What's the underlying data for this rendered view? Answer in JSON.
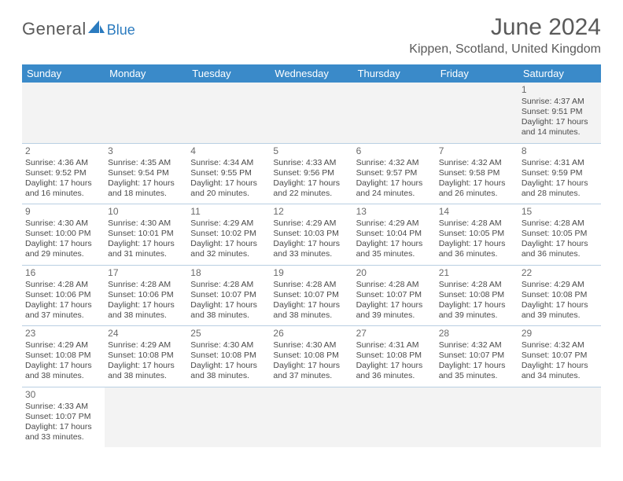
{
  "logo": {
    "text1": "General",
    "text2": "Blue",
    "shape_color": "#2b7bbf"
  },
  "title": "June 2024",
  "location": "Kippen, Scotland, United Kingdom",
  "colors": {
    "header_bg": "#3a8ac9",
    "header_text": "#ffffff",
    "cell_border": "#b9cfe2",
    "body_text": "#4a4a4a",
    "title_text": "#5a5a5a",
    "blank_bg": "#f3f3f3",
    "page_bg": "#ffffff"
  },
  "day_names": [
    "Sunday",
    "Monday",
    "Tuesday",
    "Wednesday",
    "Thursday",
    "Friday",
    "Saturday"
  ],
  "weeks": [
    [
      null,
      null,
      null,
      null,
      null,
      null,
      {
        "n": "1",
        "sr": "Sunrise: 4:37 AM",
        "ss": "Sunset: 9:51 PM",
        "d1": "Daylight: 17 hours",
        "d2": "and 14 minutes."
      }
    ],
    [
      {
        "n": "2",
        "sr": "Sunrise: 4:36 AM",
        "ss": "Sunset: 9:52 PM",
        "d1": "Daylight: 17 hours",
        "d2": "and 16 minutes."
      },
      {
        "n": "3",
        "sr": "Sunrise: 4:35 AM",
        "ss": "Sunset: 9:54 PM",
        "d1": "Daylight: 17 hours",
        "d2": "and 18 minutes."
      },
      {
        "n": "4",
        "sr": "Sunrise: 4:34 AM",
        "ss": "Sunset: 9:55 PM",
        "d1": "Daylight: 17 hours",
        "d2": "and 20 minutes."
      },
      {
        "n": "5",
        "sr": "Sunrise: 4:33 AM",
        "ss": "Sunset: 9:56 PM",
        "d1": "Daylight: 17 hours",
        "d2": "and 22 minutes."
      },
      {
        "n": "6",
        "sr": "Sunrise: 4:32 AM",
        "ss": "Sunset: 9:57 PM",
        "d1": "Daylight: 17 hours",
        "d2": "and 24 minutes."
      },
      {
        "n": "7",
        "sr": "Sunrise: 4:32 AM",
        "ss": "Sunset: 9:58 PM",
        "d1": "Daylight: 17 hours",
        "d2": "and 26 minutes."
      },
      {
        "n": "8",
        "sr": "Sunrise: 4:31 AM",
        "ss": "Sunset: 9:59 PM",
        "d1": "Daylight: 17 hours",
        "d2": "and 28 minutes."
      }
    ],
    [
      {
        "n": "9",
        "sr": "Sunrise: 4:30 AM",
        "ss": "Sunset: 10:00 PM",
        "d1": "Daylight: 17 hours",
        "d2": "and 29 minutes."
      },
      {
        "n": "10",
        "sr": "Sunrise: 4:30 AM",
        "ss": "Sunset: 10:01 PM",
        "d1": "Daylight: 17 hours",
        "d2": "and 31 minutes."
      },
      {
        "n": "11",
        "sr": "Sunrise: 4:29 AM",
        "ss": "Sunset: 10:02 PM",
        "d1": "Daylight: 17 hours",
        "d2": "and 32 minutes."
      },
      {
        "n": "12",
        "sr": "Sunrise: 4:29 AM",
        "ss": "Sunset: 10:03 PM",
        "d1": "Daylight: 17 hours",
        "d2": "and 33 minutes."
      },
      {
        "n": "13",
        "sr": "Sunrise: 4:29 AM",
        "ss": "Sunset: 10:04 PM",
        "d1": "Daylight: 17 hours",
        "d2": "and 35 minutes."
      },
      {
        "n": "14",
        "sr": "Sunrise: 4:28 AM",
        "ss": "Sunset: 10:05 PM",
        "d1": "Daylight: 17 hours",
        "d2": "and 36 minutes."
      },
      {
        "n": "15",
        "sr": "Sunrise: 4:28 AM",
        "ss": "Sunset: 10:05 PM",
        "d1": "Daylight: 17 hours",
        "d2": "and 36 minutes."
      }
    ],
    [
      {
        "n": "16",
        "sr": "Sunrise: 4:28 AM",
        "ss": "Sunset: 10:06 PM",
        "d1": "Daylight: 17 hours",
        "d2": "and 37 minutes."
      },
      {
        "n": "17",
        "sr": "Sunrise: 4:28 AM",
        "ss": "Sunset: 10:06 PM",
        "d1": "Daylight: 17 hours",
        "d2": "and 38 minutes."
      },
      {
        "n": "18",
        "sr": "Sunrise: 4:28 AM",
        "ss": "Sunset: 10:07 PM",
        "d1": "Daylight: 17 hours",
        "d2": "and 38 minutes."
      },
      {
        "n": "19",
        "sr": "Sunrise: 4:28 AM",
        "ss": "Sunset: 10:07 PM",
        "d1": "Daylight: 17 hours",
        "d2": "and 38 minutes."
      },
      {
        "n": "20",
        "sr": "Sunrise: 4:28 AM",
        "ss": "Sunset: 10:07 PM",
        "d1": "Daylight: 17 hours",
        "d2": "and 39 minutes."
      },
      {
        "n": "21",
        "sr": "Sunrise: 4:28 AM",
        "ss": "Sunset: 10:08 PM",
        "d1": "Daylight: 17 hours",
        "d2": "and 39 minutes."
      },
      {
        "n": "22",
        "sr": "Sunrise: 4:29 AM",
        "ss": "Sunset: 10:08 PM",
        "d1": "Daylight: 17 hours",
        "d2": "and 39 minutes."
      }
    ],
    [
      {
        "n": "23",
        "sr": "Sunrise: 4:29 AM",
        "ss": "Sunset: 10:08 PM",
        "d1": "Daylight: 17 hours",
        "d2": "and 38 minutes."
      },
      {
        "n": "24",
        "sr": "Sunrise: 4:29 AM",
        "ss": "Sunset: 10:08 PM",
        "d1": "Daylight: 17 hours",
        "d2": "and 38 minutes."
      },
      {
        "n": "25",
        "sr": "Sunrise: 4:30 AM",
        "ss": "Sunset: 10:08 PM",
        "d1": "Daylight: 17 hours",
        "d2": "and 38 minutes."
      },
      {
        "n": "26",
        "sr": "Sunrise: 4:30 AM",
        "ss": "Sunset: 10:08 PM",
        "d1": "Daylight: 17 hours",
        "d2": "and 37 minutes."
      },
      {
        "n": "27",
        "sr": "Sunrise: 4:31 AM",
        "ss": "Sunset: 10:08 PM",
        "d1": "Daylight: 17 hours",
        "d2": "and 36 minutes."
      },
      {
        "n": "28",
        "sr": "Sunrise: 4:32 AM",
        "ss": "Sunset: 10:07 PM",
        "d1": "Daylight: 17 hours",
        "d2": "and 35 minutes."
      },
      {
        "n": "29",
        "sr": "Sunrise: 4:32 AM",
        "ss": "Sunset: 10:07 PM",
        "d1": "Daylight: 17 hours",
        "d2": "and 34 minutes."
      }
    ],
    [
      {
        "n": "30",
        "sr": "Sunrise: 4:33 AM",
        "ss": "Sunset: 10:07 PM",
        "d1": "Daylight: 17 hours",
        "d2": "and 33 minutes."
      },
      null,
      null,
      null,
      null,
      null,
      null
    ]
  ]
}
